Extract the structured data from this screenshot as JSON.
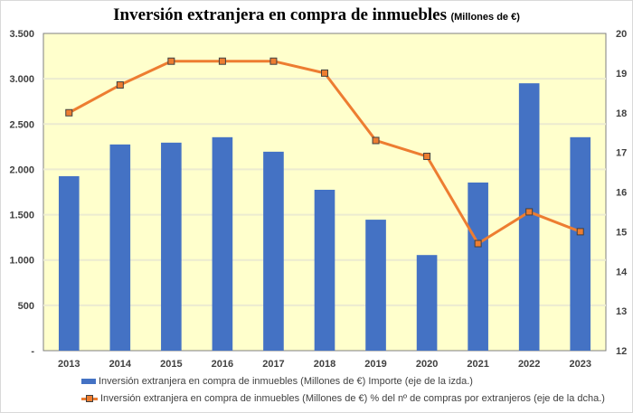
{
  "chart_data": {
    "type": "bar",
    "title": "Inversión extranjera en compra de inmuebles",
    "subtitle": "(Millones de €)",
    "categories": [
      "2013",
      "2014",
      "2015",
      "2016",
      "2017",
      "2018",
      "2019",
      "2020",
      "2021",
      "2022",
      "2023"
    ],
    "series": [
      {
        "name": "Inversión extranjera en compra de inmuebles (Millones de €) Importe (eje de la izda.)",
        "type": "bar",
        "axis": "left",
        "color": "#4472c4",
        "values": [
          1925,
          2275,
          2295,
          2355,
          2195,
          1775,
          1445,
          1055,
          1855,
          2950,
          2355
        ]
      },
      {
        "name": "Inversión extranjera en compra de inmuebles (Millones de €) % del nº de compras por extranjeros (eje de la dcha.)",
        "type": "line",
        "axis": "right",
        "color": "#ed7d31",
        "values": [
          18.0,
          18.7,
          19.3,
          19.3,
          19.3,
          19.0,
          17.3,
          16.9,
          14.7,
          15.5,
          15.0
        ]
      }
    ],
    "y_left": {
      "min": 0,
      "max": 3500,
      "step": 500,
      "tick_labels": [
        "-",
        "500",
        "1.000",
        "1.500",
        "2.000",
        "2.500",
        "3.000",
        "3.500"
      ]
    },
    "y_right": {
      "min": 12,
      "max": 20,
      "step": 1,
      "tick_labels": [
        "12",
        "13",
        "14",
        "15",
        "16",
        "17",
        "18",
        "19",
        "20"
      ]
    },
    "xlabel": "",
    "ylabel": "",
    "grid": true,
    "plot_background": "#ffffcc",
    "legend_position": "bottom"
  }
}
